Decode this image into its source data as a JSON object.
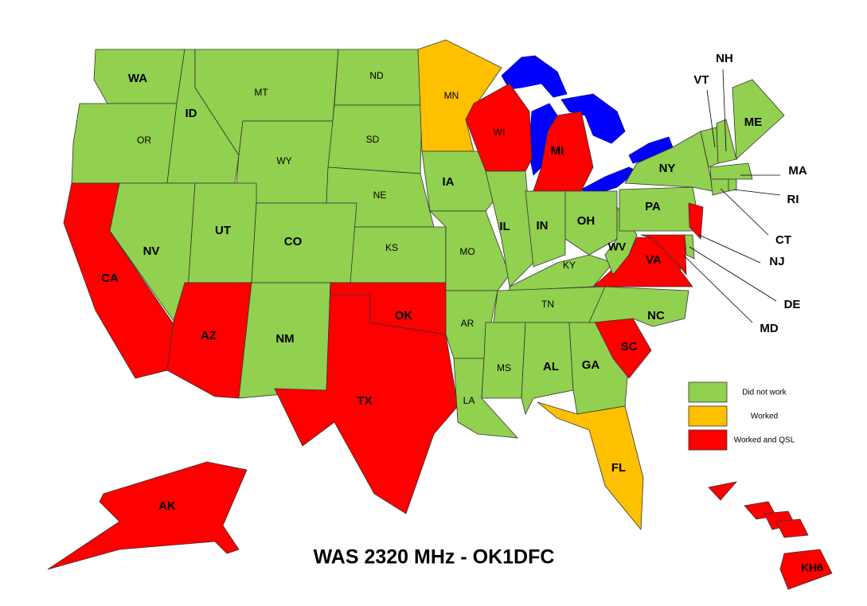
{
  "title": "WAS 2320 MHz - OK1DFC",
  "legend": [
    {
      "label": "Did not work",
      "color": "#92d050"
    },
    {
      "label": "Worked",
      "color": "#ffc000"
    },
    {
      "label": "Worked and QSL",
      "color": "#ff0000"
    }
  ],
  "states": [
    {
      "label": "WA",
      "color": "#92d050"
    },
    {
      "label": "OR",
      "color": "#92d050"
    },
    {
      "label": "ID",
      "color": "#92d050"
    },
    {
      "label": "MT",
      "color": "#92d050"
    },
    {
      "label": "WY",
      "color": "#92d050"
    },
    {
      "label": "ND",
      "color": "#92d050"
    },
    {
      "label": "SD",
      "color": "#92d050"
    },
    {
      "label": "NE",
      "color": "#92d050"
    },
    {
      "label": "KS",
      "color": "#92d050"
    },
    {
      "label": "CA",
      "color": "#ff0000"
    },
    {
      "label": "NV",
      "color": "#92d050"
    },
    {
      "label": "UT",
      "color": "#92d050"
    },
    {
      "label": "CO",
      "color": "#92d050"
    },
    {
      "label": "AZ",
      "color": "#ff0000"
    },
    {
      "label": "NM",
      "color": "#92d050"
    },
    {
      "label": "TX",
      "color": "#ff0000"
    },
    {
      "label": "OK",
      "color": "#ff0000"
    },
    {
      "label": "MN",
      "color": "#ffc000"
    },
    {
      "label": "IA",
      "color": "#92d050"
    },
    {
      "label": "MO",
      "color": "#92d050"
    },
    {
      "label": "AR",
      "color": "#92d050"
    },
    {
      "label": "LA",
      "color": "#92d050"
    },
    {
      "label": "WI",
      "color": "#ff0000"
    },
    {
      "label": "IL",
      "color": "#92d050"
    },
    {
      "label": "MI",
      "color": "#ff0000"
    },
    {
      "label": "IN",
      "color": "#92d050"
    },
    {
      "label": "OH",
      "color": "#92d050"
    },
    {
      "label": "KY",
      "color": "#92d050"
    },
    {
      "label": "TN",
      "color": "#92d050"
    },
    {
      "label": "MS",
      "color": "#92d050"
    },
    {
      "label": "AL",
      "color": "#92d050"
    },
    {
      "label": "GA",
      "color": "#92d050"
    },
    {
      "label": "FL",
      "color": "#ffc000"
    },
    {
      "label": "SC",
      "color": "#ff0000"
    },
    {
      "label": "NC",
      "color": "#92d050"
    },
    {
      "label": "VA",
      "color": "#ff0000"
    },
    {
      "label": "WV",
      "color": "#92d050"
    },
    {
      "label": "PA",
      "color": "#92d050"
    },
    {
      "label": "NY",
      "color": "#92d050"
    },
    {
      "label": "NJ",
      "color": "#ff0000"
    },
    {
      "label": "DE",
      "color": "#92d050"
    },
    {
      "label": "MD",
      "color": "#ff0000"
    },
    {
      "label": "VT",
      "color": "#92d050"
    },
    {
      "label": "NH",
      "color": "#92d050"
    },
    {
      "label": "ME",
      "color": "#92d050"
    },
    {
      "label": "MA",
      "color": "#92d050"
    },
    {
      "label": "CT",
      "color": "#92d050"
    },
    {
      "label": "RI",
      "color": "#92d050"
    },
    {
      "label": "AK",
      "color": "#ff0000"
    },
    {
      "label": "KH6",
      "color": "#ff0000"
    }
  ]
}
